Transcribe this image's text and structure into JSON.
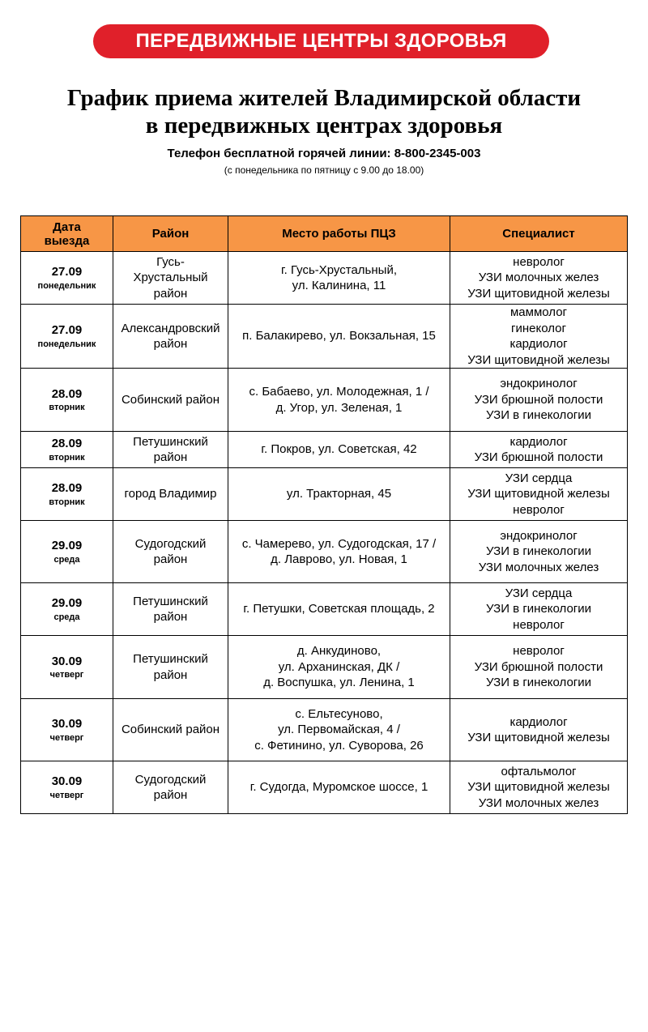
{
  "banner": "ПЕРЕДВИЖНЫЕ ЦЕНТРЫ ЗДОРОВЬЯ",
  "title": [
    "График приема жителей Владимирской области",
    "в передвижных центрах здоровья"
  ],
  "phone": "Телефон бесплатной горячей линии: 8-800-2345-003",
  "hours": "(с понедельника по пятницу с 9.00 до 18.00)",
  "table": {
    "headers": [
      [
        "Дата",
        "выезда"
      ],
      [
        "Район"
      ],
      [
        "Место работы ПЦЗ"
      ],
      [
        "Специалист"
      ]
    ],
    "rows": [
      {
        "date": "27.09",
        "day": "понедельник",
        "district": [
          "Гусь-",
          "Хрустальный",
          "район"
        ],
        "place": [
          "г. Гусь-Хрустальный,",
          "ул. Калинина, 11"
        ],
        "specialists": [
          "невролог",
          "УЗИ молочных желез",
          "УЗИ щитовидной железы"
        ]
      },
      {
        "date": "27.09",
        "day": "понедельник",
        "district": [
          "Александровский",
          "район"
        ],
        "place": [
          "п. Балакирево, ул. Вокзальная, 15"
        ],
        "specialists": [
          "маммолог",
          "гинеколог",
          "кардиолог",
          "УЗИ щитовидной железы"
        ]
      },
      {
        "date": "28.09",
        "day": "вторник",
        "district": [
          "Собинский район"
        ],
        "place": [
          "с. Бабаево, ул. Молодежная, 1 /",
          "д. Угор, ул. Зеленая, 1"
        ],
        "specialists": [
          "эндокринолог",
          "УЗИ брюшной полости",
          "УЗИ в гинекологии"
        ]
      },
      {
        "date": "28.09",
        "day": "вторник",
        "district": [
          "Петушинский",
          "район"
        ],
        "place": [
          "г. Покров, ул. Советская, 42"
        ],
        "specialists": [
          "кардиолог",
          "УЗИ брюшной полости"
        ]
      },
      {
        "date": "28.09",
        "day": "вторник",
        "district": [
          "город Владимир"
        ],
        "place": [
          "ул. Тракторная, 45"
        ],
        "specialists": [
          "УЗИ сердца",
          "УЗИ щитовидной железы",
          "невролог"
        ]
      },
      {
        "date": "29.09",
        "day": "среда",
        "district": [
          "Судогодский",
          "район"
        ],
        "place": [
          "с. Чамерево, ул. Судогодская, 17 /",
          "д. Лаврово, ул. Новая, 1"
        ],
        "specialists": [
          "эндокринолог",
          "УЗИ в гинекологии",
          "УЗИ молочных желез"
        ]
      },
      {
        "date": "29.09",
        "day": "среда",
        "district": [
          "Петушинский",
          "район"
        ],
        "place": [
          "г. Петушки, Советская площадь, 2"
        ],
        "specialists": [
          "УЗИ сердца",
          "УЗИ в гинекологии",
          "невролог"
        ]
      },
      {
        "date": "30.09",
        "day": "четверг",
        "district": [
          "Петушинский",
          "район"
        ],
        "place": [
          "д. Анкудиново,",
          "ул. Арханинская, ДК /",
          "д. Воспушка, ул. Ленина, 1"
        ],
        "specialists": [
          "невролог",
          "УЗИ брюшной полости",
          "УЗИ в гинекологии"
        ]
      },
      {
        "date": "30.09",
        "day": "четверг",
        "district": [
          "Собинский район"
        ],
        "place": [
          "с. Ельтесуново,",
          "ул. Первомайская, 4 /",
          "с. Фетинино, ул. Суворова, 26"
        ],
        "specialists": [
          "кардиолог",
          "УЗИ щитовидной железы"
        ]
      },
      {
        "date": "30.09",
        "day": "четверг",
        "district": [
          "Судогодский",
          "район"
        ],
        "place": [
          "г. Судогда, Муромское шоссе, 1"
        ],
        "specialists": [
          "офтальмолог",
          "УЗИ щитовидной железы",
          "УЗИ молочных желез"
        ]
      }
    ]
  }
}
